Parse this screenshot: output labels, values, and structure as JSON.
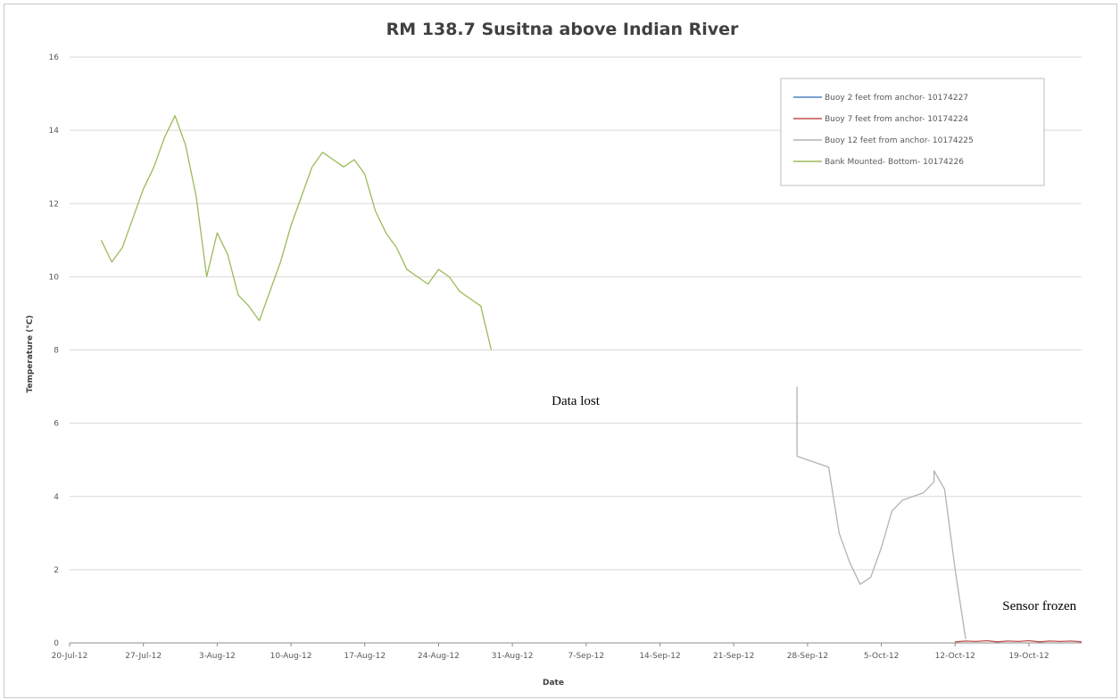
{
  "chart_data": {
    "type": "line",
    "title": "RM 138.7 Susitna above Indian River",
    "xlabel": "Date",
    "ylabel": "Temperature (°C)",
    "x_ticks": [
      "20-Jul-12",
      "27-Jul-12",
      "3-Aug-12",
      "10-Aug-12",
      "17-Aug-12",
      "24-Aug-12",
      "31-Aug-12",
      "7-Sep-12",
      "14-Sep-12",
      "21-Sep-12",
      "28-Sep-12",
      "5-Oct-12",
      "12-Oct-12",
      "19-Oct-12"
    ],
    "x_range": [
      "2012-07-20",
      "2012-10-24"
    ],
    "y_ticks": [
      "0",
      "2",
      "4",
      "6",
      "8",
      "10",
      "12",
      "14",
      "16"
    ],
    "ylim": [
      0,
      16
    ],
    "grid": "horizontal",
    "legend_position": "top-right",
    "annotations": [
      {
        "text": "Data lost",
        "x": "2012-09-06",
        "y": 6.5
      },
      {
        "text": "Sensor frozen",
        "x": "2012-10-20",
        "y": 0.9
      }
    ],
    "series": [
      {
        "name": "Buoy 2 feet from anchor- 10174227",
        "color": "#4f81bd",
        "points": []
      },
      {
        "name": "Buoy 7 feet from anchor- 10174224",
        "color": "#c0504d",
        "points": [
          [
            "2012-10-12",
            0.03
          ],
          [
            "2012-10-13",
            0.05
          ],
          [
            "2012-10-14",
            0.04
          ],
          [
            "2012-10-15",
            0.06
          ],
          [
            "2012-10-16",
            0.03
          ],
          [
            "2012-10-17",
            0.05
          ],
          [
            "2012-10-18",
            0.04
          ],
          [
            "2012-10-19",
            0.06
          ],
          [
            "2012-10-20",
            0.03
          ],
          [
            "2012-10-21",
            0.05
          ],
          [
            "2012-10-22",
            0.04
          ],
          [
            "2012-10-23",
            0.05
          ],
          [
            "2012-10-24",
            0.03
          ]
        ]
      },
      {
        "name": "Buoy 12 feet from anchor- 10174225",
        "color": "#b3b3b3",
        "points": [
          [
            "2012-09-27",
            7.0
          ],
          [
            "2012-09-27",
            5.1
          ],
          [
            "2012-09-28",
            5.0
          ],
          [
            "2012-09-29",
            4.9
          ],
          [
            "2012-09-30",
            4.8
          ],
          [
            "2012-10-01",
            3.0
          ],
          [
            "2012-10-02",
            2.2
          ],
          [
            "2012-10-03",
            1.6
          ],
          [
            "2012-10-04",
            1.8
          ],
          [
            "2012-10-05",
            2.6
          ],
          [
            "2012-10-06",
            3.6
          ],
          [
            "2012-10-07",
            3.9
          ],
          [
            "2012-10-08",
            4.0
          ],
          [
            "2012-10-09",
            4.1
          ],
          [
            "2012-10-10",
            4.4
          ],
          [
            "2012-10-10",
            4.7
          ],
          [
            "2012-10-11",
            4.2
          ],
          [
            "2012-10-12",
            2.0
          ],
          [
            "2012-10-13",
            0.1
          ]
        ]
      },
      {
        "name": "Bank Mounted- Bottom- 10174226",
        "color": "#9bbb59",
        "points": [
          [
            "2012-07-23",
            11.0
          ],
          [
            "2012-07-24",
            10.4
          ],
          [
            "2012-07-25",
            10.8
          ],
          [
            "2012-07-26",
            11.6
          ],
          [
            "2012-07-27",
            12.4
          ],
          [
            "2012-07-28",
            13.0
          ],
          [
            "2012-07-29",
            13.8
          ],
          [
            "2012-07-30",
            14.4
          ],
          [
            "2012-07-31",
            13.6
          ],
          [
            "2012-08-01",
            12.2
          ],
          [
            "2012-08-02",
            10.0
          ],
          [
            "2012-08-03",
            11.2
          ],
          [
            "2012-08-04",
            10.6
          ],
          [
            "2012-08-05",
            9.5
          ],
          [
            "2012-08-06",
            9.2
          ],
          [
            "2012-08-07",
            8.8
          ],
          [
            "2012-08-08",
            9.6
          ],
          [
            "2012-08-09",
            10.4
          ],
          [
            "2012-08-10",
            11.4
          ],
          [
            "2012-08-11",
            12.2
          ],
          [
            "2012-08-12",
            13.0
          ],
          [
            "2012-08-13",
            13.4
          ],
          [
            "2012-08-14",
            13.2
          ],
          [
            "2012-08-15",
            13.0
          ],
          [
            "2012-08-16",
            13.2
          ],
          [
            "2012-08-17",
            12.8
          ],
          [
            "2012-08-18",
            11.8
          ],
          [
            "2012-08-19",
            11.2
          ],
          [
            "2012-08-20",
            10.8
          ],
          [
            "2012-08-21",
            10.2
          ],
          [
            "2012-08-22",
            10.0
          ],
          [
            "2012-08-23",
            9.8
          ],
          [
            "2012-08-24",
            10.2
          ],
          [
            "2012-08-25",
            10.0
          ],
          [
            "2012-08-26",
            9.6
          ],
          [
            "2012-08-27",
            9.4
          ],
          [
            "2012-08-28",
            9.2
          ],
          [
            "2012-08-29",
            8.0
          ]
        ]
      }
    ]
  }
}
